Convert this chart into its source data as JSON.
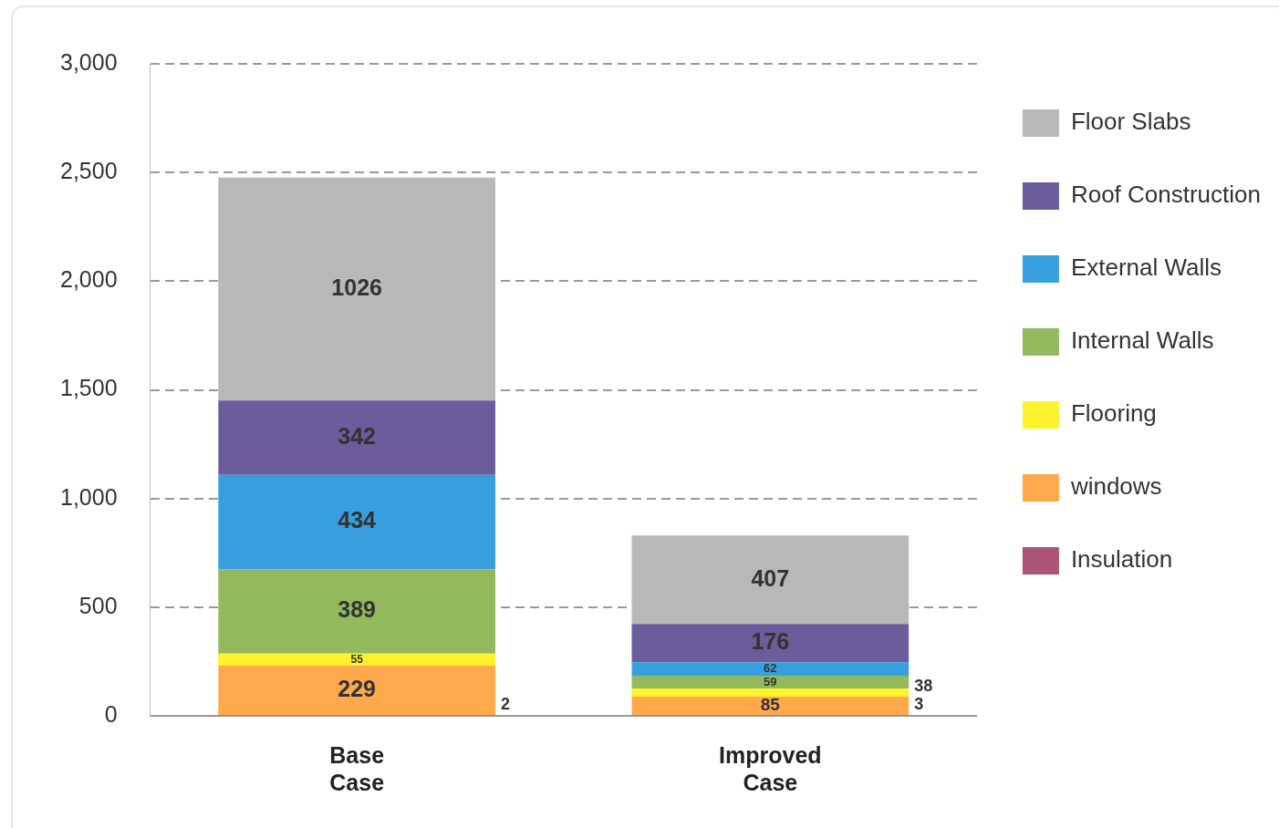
{
  "chart_data": {
    "type": "bar",
    "stacked": true,
    "categories": [
      "Base\nCase",
      "Improved\nCase"
    ],
    "series": [
      {
        "name": "Insulation",
        "color": "#ac5476",
        "values": [
          2,
          3
        ]
      },
      {
        "name": "windows",
        "color": "#ffa94c",
        "values": [
          229,
          85
        ]
      },
      {
        "name": "Flooring",
        "color": "#fff22e",
        "values": [
          55,
          38
        ]
      },
      {
        "name": "Internal Walls",
        "color": "#92ba5c",
        "values": [
          389,
          59
        ]
      },
      {
        "name": "External Walls",
        "color": "#379fde",
        "values": [
          434,
          62
        ]
      },
      {
        "name": "Roof Construction",
        "color": "#6b5c9b",
        "values": [
          342,
          176
        ]
      },
      {
        "name": "Floor Slabs",
        "color": "#b7b8b7",
        "values": [
          1026,
          407
        ]
      }
    ],
    "ylim": [
      0,
      3000
    ],
    "yticks": [
      0,
      500,
      {
        "value": 1000,
        "label": "1,000"
      },
      {
        "value": 1500,
        "label": "1,500"
      },
      {
        "value": 2000,
        "label": "2,000"
      },
      {
        "value": 2500,
        "label": "2,500"
      },
      {
        "value": 3000,
        "label": "3,000"
      }
    ],
    "grid": "y",
    "legend": "right",
    "data_labels": true
  }
}
